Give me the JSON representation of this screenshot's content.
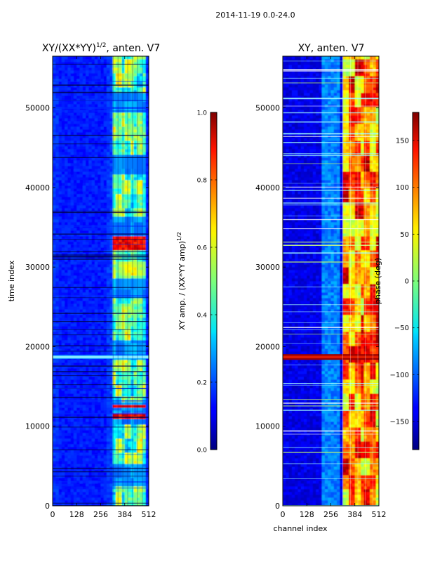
{
  "figure": {
    "suptitle": "2014-11-19 0.0-24.0"
  },
  "chart_data": [
    {
      "type": "heatmap",
      "title": "XY/(XX*YY)^{1/2}, anten. V7",
      "title_main": "XY/(XX*YY)",
      "title_sup": "1/2",
      "title_tail": ", anten. V7",
      "xlabel": "",
      "ylabel": "time index",
      "xlim": [
        0,
        512
      ],
      "ylim": [
        0,
        56500
      ],
      "xticks": [
        0,
        128,
        256,
        384,
        512
      ],
      "yticks": [
        0,
        10000,
        20000,
        30000,
        40000,
        50000
      ],
      "colormap": "jet",
      "colorbar": {
        "label": "XY amp. / (XX*YY amp)^{1/2}",
        "label_main": "XY amp. / (XX*YY amp)",
        "label_sup": "1/2",
        "vmin": 0.0,
        "vmax": 1.0,
        "ticks": [
          0.0,
          0.2,
          0.4,
          0.6,
          0.8,
          1.0
        ],
        "tick_labels": [
          "0.0",
          "0.2",
          "0.4",
          "0.6",
          "0.8",
          "1.0"
        ]
      },
      "features": {
        "background_value": 0.15,
        "active_band_channels": [
          322,
          495
        ],
        "bright_horizontal_band_time": 18700,
        "hot_rows_time": [
          11300,
          32500,
          33400,
          18700
        ]
      }
    },
    {
      "type": "heatmap",
      "title": "XY, anten. V7",
      "xlabel": "channel index",
      "ylabel": "",
      "xlim": [
        0,
        512
      ],
      "ylim": [
        0,
        56500
      ],
      "xticks": [
        0,
        128,
        256,
        384,
        512
      ],
      "yticks": [
        0,
        10000,
        20000,
        30000,
        40000,
        50000
      ],
      "colormap": "jet",
      "colorbar": {
        "label": "phase (deg)",
        "vmin": -180,
        "vmax": 180,
        "ticks": [
          -150,
          -100,
          -50,
          0,
          50,
          100,
          150
        ],
        "tick_labels": [
          "−150",
          "−100",
          "−50",
          "0",
          "50",
          "100",
          "150"
        ]
      },
      "features": {
        "background_value_deg": -140,
        "active_band_channels": [
          320,
          512
        ],
        "bright_horizontal_band_time": 18700
      }
    }
  ]
}
